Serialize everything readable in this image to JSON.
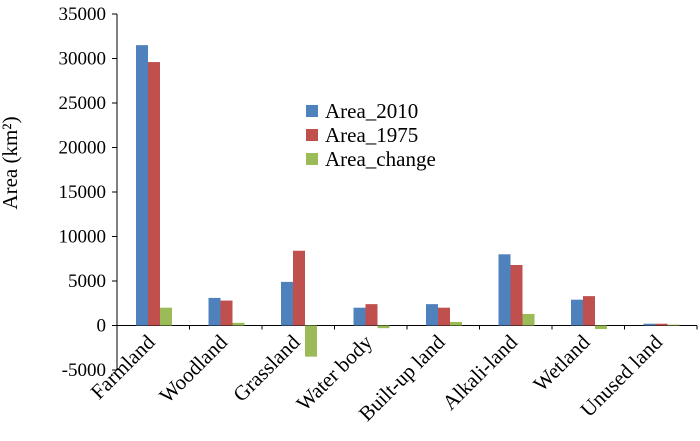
{
  "chart_data": {
    "type": "bar",
    "title": "",
    "xlabel": "",
    "ylabel": "Area (km²)",
    "ylim": [
      -5000,
      35000
    ],
    "yticks": [
      -5000,
      0,
      5000,
      10000,
      15000,
      20000,
      25000,
      30000,
      35000
    ],
    "grid": false,
    "legend_position": "center",
    "categories": [
      "Farmland",
      "Woodland",
      "Grassland",
      "Water body",
      "Built-up land",
      "Alkali-land",
      "Wetland",
      "Unused land"
    ],
    "series": [
      {
        "name": "Area_2010",
        "color": "#4F81BD",
        "values": [
          31500,
          3100,
          4900,
          2000,
          2400,
          8000,
          2900,
          200
        ]
      },
      {
        "name": "Area_1975",
        "color": "#C0504D",
        "values": [
          29600,
          2800,
          8400,
          2400,
          2000,
          6800,
          3300,
          200
        ]
      },
      {
        "name": "Area_change",
        "color": "#9BBB59",
        "values": [
          2000,
          300,
          -3500,
          -300,
          400,
          1300,
          -400,
          100
        ]
      }
    ]
  }
}
